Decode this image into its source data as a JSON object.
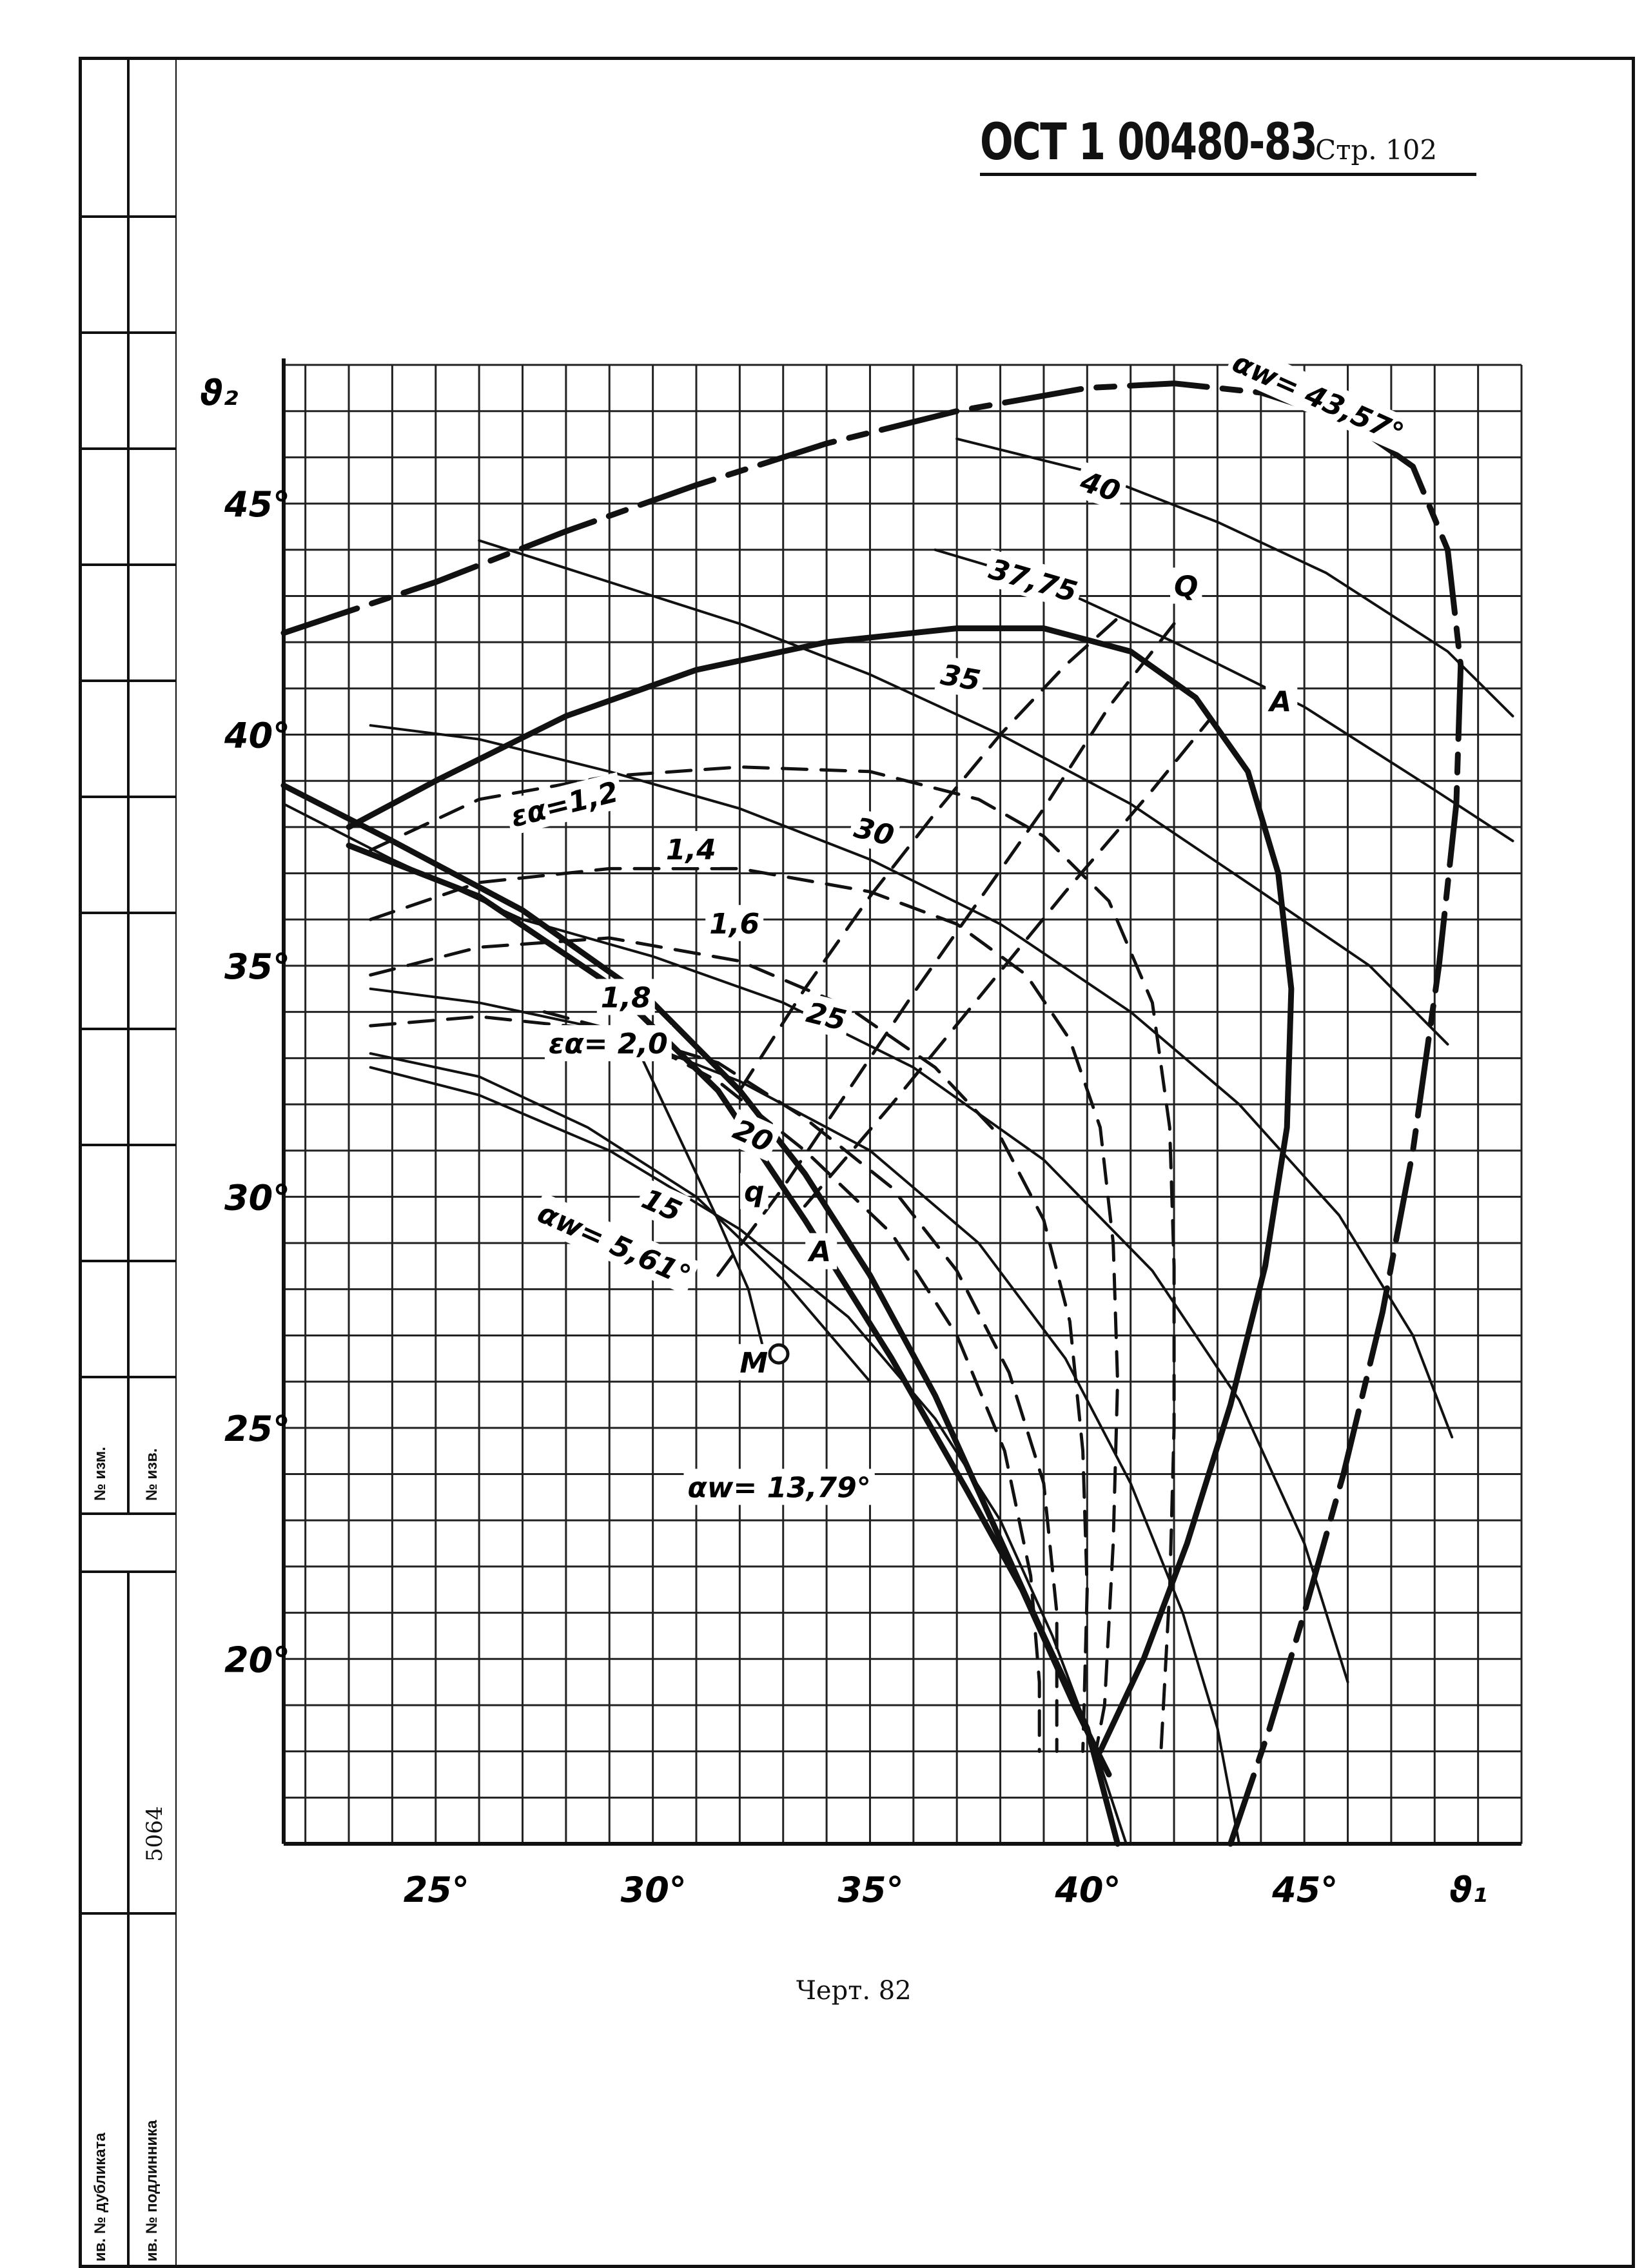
{
  "header": {
    "doc_code": "ОСТ 1 00480-83",
    "page": "Стр. 102"
  },
  "caption": "Черт. 82",
  "side_table": {
    "change_no": "№ изм.",
    "notice_no": "№ изв.",
    "inv_number": "5064",
    "dup_inv": "ив. № дубликата",
    "orig_inv": "ив. № подлинника"
  },
  "chart_data": {
    "type": "line",
    "xlabel": "ϑ₁",
    "ylabel": "ϑ₂",
    "xlim": [
      21.5,
      50
    ],
    "ylim": [
      16,
      48
    ],
    "x_ticks": [
      "25°",
      "30°",
      "35°",
      "40°",
      "45°"
    ],
    "y_ticks": [
      "20°",
      "25°",
      "30°",
      "35°",
      "40°",
      "45°"
    ],
    "grid": true,
    "labels": {
      "aw_max": "αw= 43,57°",
      "aw_min": "αw= 5,61°",
      "aw_mid": "αw= 13,79°",
      "e12": "εα=1,2",
      "e14": "1,4",
      "e16": "1,6",
      "e18": "1,8",
      "e20": "εα= 2,0",
      "l40": "40",
      "l3775": "37,75",
      "l35": "35",
      "l30": "30",
      "l25": "25",
      "l20": "20",
      "l15": "15",
      "Q": "Q",
      "q": "q",
      "A_upper": "A",
      "A_lower": "A",
      "M": "M"
    },
    "series": [
      {
        "style": "thick-dashdot",
        "points": [
          [
            21.5,
            42.2
          ],
          [
            25,
            43.3
          ],
          [
            28,
            44.4
          ],
          [
            31,
            45.4
          ],
          [
            34,
            46.3
          ],
          [
            37,
            47.0
          ],
          [
            40,
            47.5
          ],
          [
            42,
            47.6
          ],
          [
            44,
            47.4
          ],
          [
            46,
            46.8
          ],
          [
            47.5,
            45.8
          ],
          [
            48.3,
            44.0
          ],
          [
            48.6,
            41.5
          ],
          [
            48.5,
            38.5
          ],
          [
            48.1,
            35.0
          ],
          [
            47.5,
            31.0
          ],
          [
            46.8,
            27.5
          ],
          [
            45.9,
            24.0
          ],
          [
            45.0,
            21.0
          ],
          [
            44.2,
            18.5
          ],
          [
            43.3,
            16.0
          ]
        ]
      },
      {
        "style": "thick",
        "points": [
          [
            23,
            38.0
          ],
          [
            25,
            39.0
          ],
          [
            28,
            40.4
          ],
          [
            31,
            41.4
          ],
          [
            34,
            42.0
          ],
          [
            37,
            42.3
          ],
          [
            39,
            42.3
          ],
          [
            41,
            41.8
          ],
          [
            42.5,
            40.8
          ],
          [
            43.7,
            39.2
          ],
          [
            44.4,
            37.0
          ],
          [
            44.7,
            34.5
          ],
          [
            44.6,
            31.5
          ],
          [
            44.1,
            28.5
          ],
          [
            43.3,
            25.5
          ],
          [
            42.3,
            22.5
          ],
          [
            41.3,
            20.0
          ],
          [
            40.3,
            18.0
          ]
        ]
      },
      {
        "style": "thin",
        "points": [
          [
            37,
            46.4
          ],
          [
            40,
            45.7
          ],
          [
            43,
            44.6
          ],
          [
            45.5,
            43.5
          ],
          [
            48.3,
            41.8
          ],
          [
            49.8,
            40.4
          ]
        ]
      },
      {
        "style": "thin",
        "points": [
          [
            36.5,
            44.0
          ],
          [
            39,
            43.3
          ],
          [
            42,
            42.0
          ],
          [
            45,
            40.6
          ],
          [
            48,
            38.8
          ],
          [
            49.8,
            37.7
          ]
        ]
      },
      {
        "style": "thin",
        "points": [
          [
            26,
            44.2
          ],
          [
            29,
            43.3
          ],
          [
            32,
            42.4
          ],
          [
            35,
            41.3
          ],
          [
            38,
            40.0
          ],
          [
            41,
            38.5
          ],
          [
            44,
            36.6
          ],
          [
            46.5,
            35.0
          ],
          [
            48.3,
            33.3
          ]
        ]
      },
      {
        "style": "thin",
        "points": [
          [
            23.5,
            40.2
          ],
          [
            26,
            39.9
          ],
          [
            29,
            39.2
          ],
          [
            32,
            38.4
          ],
          [
            35,
            37.3
          ],
          [
            38,
            35.9
          ],
          [
            41,
            34.0
          ],
          [
            43.5,
            32.0
          ],
          [
            45.8,
            29.6
          ],
          [
            47.5,
            27.0
          ],
          [
            48.4,
            24.8
          ]
        ]
      },
      {
        "style": "thin",
        "points": [
          [
            21.5,
            38.5
          ],
          [
            24,
            37.3
          ],
          [
            27,
            36.0
          ],
          [
            30,
            35.2
          ],
          [
            33,
            34.2
          ],
          [
            36,
            32.8
          ],
          [
            39,
            30.8
          ],
          [
            41.5,
            28.4
          ],
          [
            43.5,
            25.6
          ],
          [
            45,
            22.5
          ],
          [
            46,
            19.5
          ]
        ]
      },
      {
        "style": "thin",
        "points": [
          [
            23.5,
            34.5
          ],
          [
            26,
            34.2
          ],
          [
            29,
            33.6
          ],
          [
            32,
            32.5
          ],
          [
            35,
            31.0
          ],
          [
            37.5,
            29.0
          ],
          [
            39.5,
            26.5
          ],
          [
            41,
            23.8
          ],
          [
            42.2,
            21.0
          ],
          [
            43,
            18.5
          ],
          [
            43.5,
            16.0
          ]
        ]
      },
      {
        "style": "thin",
        "points": [
          [
            23.5,
            32.8
          ],
          [
            26,
            32.2
          ],
          [
            29,
            31.0
          ],
          [
            32,
            29.3
          ],
          [
            34.5,
            27.4
          ],
          [
            36.5,
            25.2
          ],
          [
            38,
            23.0
          ],
          [
            39.2,
            20.5
          ],
          [
            40.2,
            18.0
          ],
          [
            40.9,
            16.0
          ]
        ]
      },
      {
        "style": "thick",
        "points": [
          [
            21.5,
            38.9
          ],
          [
            24,
            37.7
          ],
          [
            27,
            36.2
          ],
          [
            30,
            34.2
          ],
          [
            32,
            32.3
          ],
          [
            33.5,
            30.5
          ],
          [
            35,
            28.3
          ],
          [
            36.5,
            25.7
          ],
          [
            37.8,
            23.0
          ],
          [
            39,
            20.5
          ],
          [
            40,
            18.5
          ],
          [
            40.7,
            16.0
          ]
        ]
      },
      {
        "style": "thick",
        "points": [
          [
            23,
            37.6
          ],
          [
            26,
            36.5
          ],
          [
            29,
            34.6
          ],
          [
            31.5,
            32.3
          ],
          [
            33.5,
            29.5
          ],
          [
            35.5,
            26.5
          ],
          [
            37.2,
            23.7
          ],
          [
            38.5,
            21.5
          ],
          [
            39.7,
            19.0
          ],
          [
            40.5,
            17.5
          ]
        ]
      },
      {
        "style": "dashed",
        "points": [
          [
            23.5,
            37.5
          ],
          [
            26,
            38.6
          ],
          [
            29,
            39.1
          ],
          [
            32,
            39.3
          ],
          [
            35,
            39.2
          ],
          [
            37.5,
            38.6
          ],
          [
            39,
            37.8
          ],
          [
            40.5,
            36.4
          ],
          [
            41.5,
            34.2
          ],
          [
            41.9,
            31.5
          ],
          [
            42,
            28.5
          ],
          [
            42,
            25.0
          ],
          [
            41.9,
            21.5
          ],
          [
            41.7,
            18.0
          ]
        ]
      },
      {
        "style": "dashed",
        "points": [
          [
            23.5,
            36.0
          ],
          [
            26,
            36.8
          ],
          [
            29,
            37.1
          ],
          [
            32,
            37.1
          ],
          [
            35,
            36.6
          ],
          [
            37,
            35.9
          ],
          [
            38.6,
            34.8
          ],
          [
            39.6,
            33.4
          ],
          [
            40.3,
            31.5
          ],
          [
            40.6,
            29.0
          ],
          [
            40.7,
            26.0
          ],
          [
            40.6,
            22.5
          ],
          [
            40.4,
            19.0
          ],
          [
            40.2,
            18.0
          ]
        ]
      },
      {
        "style": "dashed",
        "points": [
          [
            23.5,
            34.8
          ],
          [
            26,
            35.4
          ],
          [
            29,
            35.6
          ],
          [
            32,
            35.1
          ],
          [
            34.5,
            34.1
          ],
          [
            36.5,
            32.8
          ],
          [
            38,
            31.3
          ],
          [
            39,
            29.5
          ],
          [
            39.6,
            27.3
          ],
          [
            39.9,
            24.5
          ],
          [
            40,
            21.5
          ],
          [
            39.9,
            18.0
          ]
        ]
      },
      {
        "style": "dashed",
        "points": [
          [
            23.5,
            33.7
          ],
          [
            26,
            33.9
          ],
          [
            29,
            33.6
          ],
          [
            31.5,
            32.9
          ],
          [
            33.5,
            31.7
          ],
          [
            35.5,
            30.2
          ],
          [
            37,
            28.4
          ],
          [
            38.2,
            26.2
          ],
          [
            39,
            23.8
          ],
          [
            39.3,
            21.0
          ],
          [
            39.3,
            18.0
          ]
        ]
      },
      {
        "style": "dashed",
        "points": [
          [
            27.5,
            34.0
          ],
          [
            29.5,
            33.5
          ],
          [
            31.5,
            32.5
          ],
          [
            33.5,
            31.0
          ],
          [
            35.5,
            29.2
          ],
          [
            37,
            27.0
          ],
          [
            38.1,
            24.5
          ],
          [
            38.7,
            21.8
          ],
          [
            38.9,
            19.5
          ],
          [
            38.9,
            18.0
          ]
        ]
      },
      {
        "style": "dashed",
        "points": [
          [
            32,
            32.3
          ],
          [
            33.5,
            34.5
          ],
          [
            35,
            36.5
          ],
          [
            36.5,
            38.3
          ],
          [
            38,
            40.0
          ],
          [
            39.5,
            41.5
          ],
          [
            40.8,
            42.6
          ]
        ]
      },
      {
        "style": "dashed",
        "points": [
          [
            33.5,
            29.8
          ],
          [
            35.5,
            32.0
          ],
          [
            37.5,
            34.3
          ],
          [
            39.5,
            36.6
          ],
          [
            41.5,
            38.8
          ],
          [
            42.8,
            40.3
          ]
        ]
      },
      {
        "style": "dashed",
        "points": [
          [
            31.5,
            28.3
          ],
          [
            33,
            30.2
          ],
          [
            34.5,
            32.3
          ],
          [
            36,
            34.4
          ],
          [
            37.5,
            36.4
          ],
          [
            39,
            38.4
          ],
          [
            40.5,
            40.6
          ],
          [
            42,
            42.4
          ]
        ]
      },
      {
        "style": "thin",
        "points": [
          [
            29.5,
            33.5
          ],
          [
            30.5,
            31.5
          ],
          [
            31.5,
            29.5
          ],
          [
            32.2,
            28.0
          ],
          [
            32.6,
            26.5
          ]
        ]
      },
      {
        "style": "thin",
        "points": [
          [
            23.5,
            33.1
          ],
          [
            26,
            32.6
          ],
          [
            28.5,
            31.5
          ],
          [
            31,
            30.0
          ],
          [
            33,
            28.2
          ],
          [
            35,
            26.0
          ]
        ]
      }
    ]
  }
}
